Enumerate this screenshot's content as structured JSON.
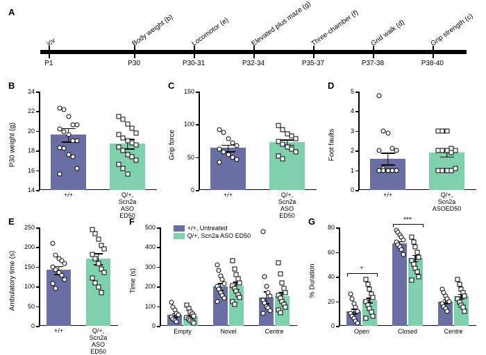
{
  "colors": {
    "wt": "#6a6fa3",
    "aso": "#7ed1ac",
    "axis": "#000000",
    "bg": "#ffffff",
    "point_stroke": "#000000"
  },
  "timeline": {
    "label": "A",
    "ticks": [
      {
        "pos": 0.02,
        "top": "icv",
        "bot": "P1"
      },
      {
        "pos": 0.22,
        "top": "Body weight (b)",
        "bot": "P30"
      },
      {
        "pos": 0.36,
        "top": "Locomotor (e)",
        "bot": "P30-31"
      },
      {
        "pos": 0.5,
        "top": "Elevated plus maze (g)",
        "bot": "P32-34"
      },
      {
        "pos": 0.64,
        "top": "Three-chamber (f)",
        "bot": "P35-37"
      },
      {
        "pos": 0.78,
        "top": "Grid walk (d)",
        "bot": "P37-38"
      },
      {
        "pos": 0.92,
        "top": "Grip strength (c)",
        "bot": "P38-40"
      }
    ]
  },
  "panels": [
    {
      "id": "B",
      "label": "B",
      "ylabel": "P30 weight (g)",
      "ymin": 14,
      "ymax": 24,
      "ystep": 2,
      "bars": [
        {
          "cat": "+/+",
          "mean": 19.6,
          "err": 0.7,
          "color": "wt",
          "shape": "circle",
          "points": [
            22.3,
            22.2,
            21.5,
            20.6,
            20.6,
            20.2,
            19.9,
            19.6,
            19.0,
            19.0,
            18.3,
            18.2,
            17.6,
            17.4,
            16.2,
            15.6
          ]
        },
        {
          "cat": "Q/+, Scn2a ASO ED50",
          "mean": 18.7,
          "err": 0.5,
          "color": "aso",
          "shape": "square",
          "points": [
            21.5,
            21.2,
            20.7,
            20.3,
            19.8,
            19.6,
            19.3,
            19.0,
            18.8,
            18.6,
            18.4,
            18.0,
            17.6,
            17.4,
            17.0,
            16.6,
            16.2,
            15.6
          ]
        }
      ]
    },
    {
      "id": "C",
      "label": "C",
      "ylabel": "Grip force",
      "ymin": 0,
      "ymax": 150,
      "ystep": 50,
      "bars": [
        {
          "cat": "+/+",
          "mean": 64,
          "err": 5,
          "color": "wt",
          "shape": "circle",
          "points": [
            92,
            88,
            78,
            72,
            68,
            62,
            58,
            54,
            50,
            46,
            42
          ]
        },
        {
          "cat": "Q/+, Scn2a ASO ED50",
          "mean": 73,
          "err": 4,
          "color": "aso",
          "shape": "square",
          "points": [
            98,
            92,
            86,
            82,
            78,
            74,
            70,
            66,
            62,
            58,
            52,
            48
          ]
        }
      ]
    },
    {
      "id": "D",
      "label": "D",
      "ylabel": "Foot faults",
      "ymin": 0,
      "ymax": 5,
      "ystep": 1,
      "bars": [
        {
          "cat": "+/+",
          "mean": 1.6,
          "err": 0.3,
          "color": "wt",
          "shape": "circle",
          "points": [
            4.8,
            3.0,
            2.9,
            2.1,
            2.0,
            2.0,
            1.1,
            1.0,
            1.0,
            1.0,
            1.0,
            1.0,
            1.0,
            1.0
          ]
        },
        {
          "cat": "Q/+, Scn2a ASOED50",
          "mean": 1.9,
          "err": 0.2,
          "color": "aso",
          "shape": "square",
          "points": [
            3.0,
            3.0,
            3.0,
            2.1,
            2.0,
            2.0,
            2.0,
            2.0,
            1.9,
            1.1,
            1.0,
            1.0,
            1.0,
            1.0
          ]
        }
      ]
    },
    {
      "id": "E",
      "label": "E",
      "ylabel": "Ambulatory time (s)",
      "ymin": 0,
      "ymax": 250,
      "ystep": 50,
      "bars": [
        {
          "cat": "+/+",
          "mean": 142,
          "err": 10,
          "color": "wt",
          "shape": "circle",
          "points": [
            210,
            180,
            170,
            165,
            158,
            150,
            142,
            135,
            128,
            118,
            108,
            95
          ]
        },
        {
          "cat": "Q/+, Scn2a ASO ED50",
          "mean": 170,
          "err": 14,
          "color": "aso",
          "shape": "square",
          "points": [
            245,
            235,
            220,
            205,
            195,
            182,
            170,
            158,
            145,
            135,
            122,
            110,
            98,
            85
          ]
        }
      ]
    },
    {
      "id": "F",
      "label": "F",
      "ylabel": "Time (s)",
      "ymin": 0,
      "ymax": 500,
      "ystep": 100,
      "legend": [
        {
          "color": "wt",
          "text": "+/+, Untreated"
        },
        {
          "color": "aso",
          "text": "Q/+, Scn2a ASO ED50"
        }
      ],
      "groups": [
        {
          "cat": "Empty",
          "bars": [
            {
              "mean": 55,
              "err": 10,
              "color": "wt",
              "shape": "circle",
              "points": [
                120,
                95,
                80,
                65,
                55,
                45,
                35,
                28,
                20
              ]
            },
            {
              "mean": 48,
              "err": 8,
              "color": "aso",
              "shape": "square",
              "points": [
                105,
                88,
                72,
                60,
                50,
                42,
                35,
                28,
                20,
                15
              ]
            }
          ]
        },
        {
          "cat": "Novel",
          "bars": [
            {
              "mean": 200,
              "err": 18,
              "color": "wt",
              "shape": "circle",
              "points": [
                310,
                280,
                255,
                235,
                215,
                200,
                185,
                170,
                155,
                140,
                125
              ]
            },
            {
              "mean": 205,
              "err": 20,
              "color": "aso",
              "shape": "square",
              "points": [
                330,
                290,
                260,
                240,
                220,
                205,
                190,
                175,
                160,
                145,
                125,
                110
              ]
            }
          ]
        },
        {
          "cat": "Centre",
          "bars": [
            {
              "mean": 145,
              "err": 30,
              "color": "wt",
              "shape": "circle",
              "points": [
                480,
                250,
                200,
                170,
                150,
                130,
                115,
                100,
                90,
                78,
                65
              ]
            },
            {
              "mean": 150,
              "err": 22,
              "color": "aso",
              "shape": "square",
              "points": [
                320,
                265,
                220,
                190,
                170,
                155,
                140,
                125,
                110,
                95,
                80,
                68
              ]
            }
          ]
        }
      ]
    },
    {
      "id": "G",
      "label": "G",
      "ylabel": "% Duration",
      "ymin": 0,
      "ymax": 80,
      "ystep": 20,
      "sig": [
        {
          "group": "Open",
          "text": "*"
        },
        {
          "group": "Closed",
          "text": "***"
        }
      ],
      "groups": [
        {
          "cat": "Open",
          "bars": [
            {
              "mean": 12,
              "err": 2,
              "color": "wt",
              "shape": "circle",
              "points": [
                26,
                22,
                18,
                15,
                12,
                10,
                8,
                6,
                4,
                2
              ]
            },
            {
              "mean": 21,
              "err": 2,
              "color": "aso",
              "shape": "square",
              "points": [
                38,
                34,
                30,
                26,
                23,
                20,
                17,
                14,
                11,
                8,
                6
              ]
            }
          ]
        },
        {
          "cat": "Closed",
          "bars": [
            {
              "mean": 67,
              "err": 2,
              "color": "wt",
              "shape": "circle",
              "points": [
                78,
                76,
                74,
                72,
                70,
                68,
                66,
                64,
                62,
                58
              ]
            },
            {
              "mean": 55,
              "err": 2.5,
              "color": "aso",
              "shape": "square",
              "points": [
                72,
                68,
                64,
                60,
                56,
                53,
                50,
                47,
                44,
                40,
                37
              ]
            }
          ]
        },
        {
          "cat": "Centre",
          "bars": [
            {
              "mean": 20,
              "err": 1.5,
              "color": "wt",
              "shape": "circle",
              "points": [
                30,
                27,
                24,
                22,
                20,
                18,
                16,
                14,
                12
              ]
            },
            {
              "mean": 24,
              "err": 2,
              "color": "aso",
              "shape": "square",
              "points": [
                38,
                34,
                30,
                27,
                24,
                22,
                19,
                17,
                15,
                12
              ]
            }
          ]
        }
      ]
    }
  ]
}
